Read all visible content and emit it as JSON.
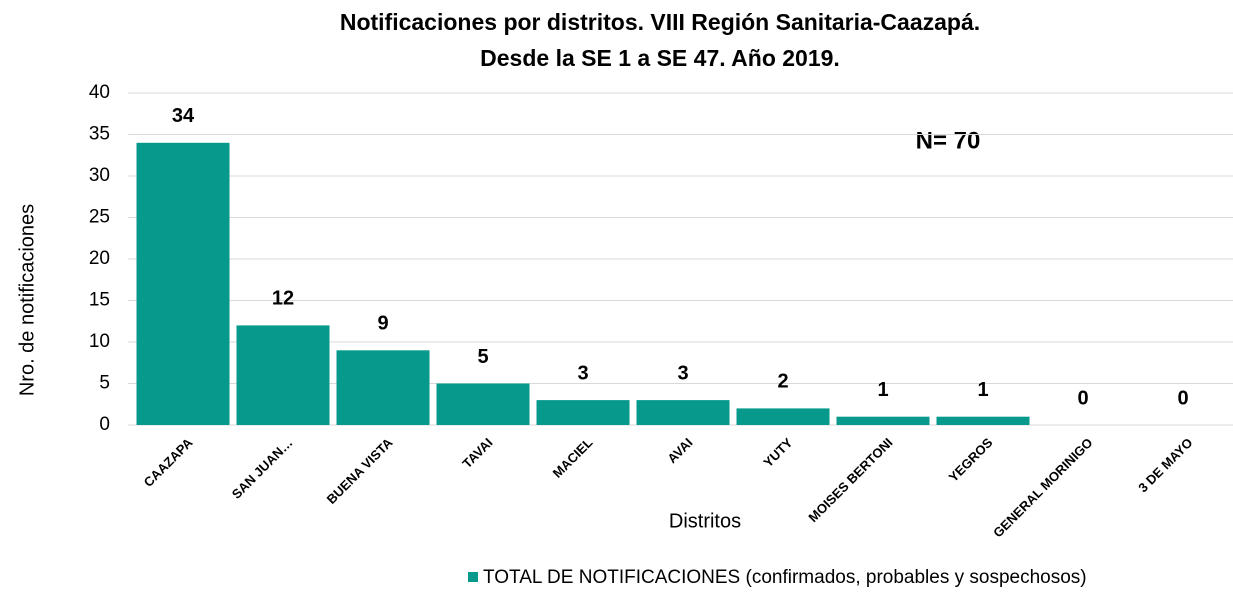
{
  "chart_data": {
    "type": "bar",
    "title": [
      "Notificaciones por distritos. VIII Región Sanitaria-Caazapá.",
      "Desde la SE 1 a SE 47. Año 2019."
    ],
    "annotation": "N= 70",
    "x_label": "Distritos",
    "y_label": "Nro. de notificaciones",
    "categories": [
      "CAAZAPA",
      "SAN JUAN…",
      "BUENA VISTA",
      "TAVAI",
      "MACIEL",
      "AVAI",
      "YUTY",
      "MOISES BERTONI",
      "YEGROS",
      "GENERAL MORINIGO",
      "3 DE MAYO"
    ],
    "series": [
      {
        "name": "TOTAL DE NOTIFICACIONES (confirmados, probables y sospechosos)",
        "color": "#079a8c",
        "values": [
          34,
          12,
          9,
          5,
          3,
          3,
          2,
          1,
          1,
          0,
          0
        ]
      }
    ],
    "ylim": [
      0,
      40
    ],
    "yticks": [
      0,
      5,
      10,
      15,
      20,
      25,
      30,
      35,
      40
    ],
    "grid": true,
    "legend": "bottom-right"
  }
}
